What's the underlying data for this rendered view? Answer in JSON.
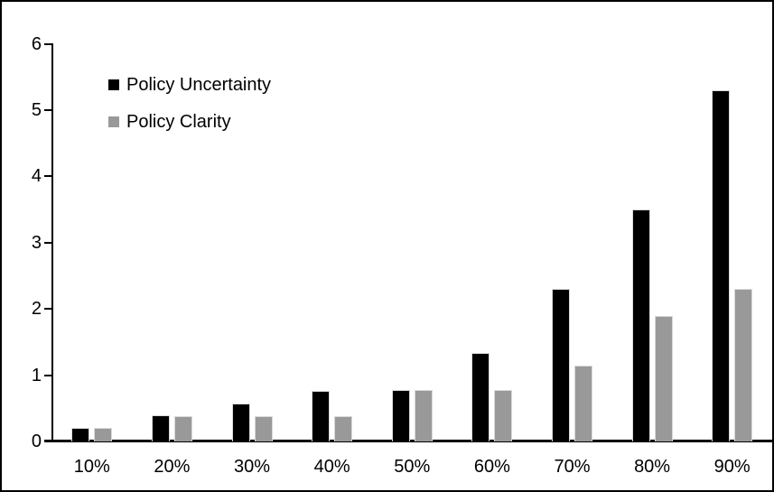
{
  "chart_data": {
    "type": "bar",
    "title": "",
    "xlabel": "",
    "ylabel": "",
    "categories": [
      "10%",
      "20%",
      "30%",
      "40%",
      "50%",
      "60%",
      "70%",
      "80%",
      "90%"
    ],
    "series": [
      {
        "name": "Policy Uncertainty",
        "color": "#000000",
        "values": [
          0.2,
          0.4,
          0.57,
          0.76,
          0.77,
          1.33,
          2.3,
          3.5,
          5.3
        ]
      },
      {
        "name": "Policy Clarity",
        "color": "#999999",
        "values": [
          0.2,
          0.38,
          0.38,
          0.38,
          0.77,
          0.77,
          1.15,
          1.9,
          2.3
        ]
      }
    ],
    "ylim": [
      0,
      6
    ],
    "yticks": [
      0,
      1,
      2,
      3,
      4,
      5,
      6
    ],
    "grid": false,
    "legend_position": "top-left-inside"
  },
  "colors": {
    "axis": "#000000",
    "frame_border": "#000000",
    "background": "#ffffff",
    "bar_outline": "#d9d9d9"
  }
}
